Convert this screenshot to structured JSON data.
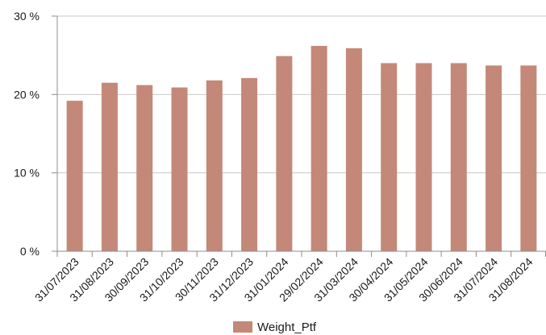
{
  "chart_data": {
    "type": "bar",
    "categories": [
      "31/07/2023",
      "31/08/2023",
      "30/09/2023",
      "31/10/2023",
      "30/11/2023",
      "31/12/2023",
      "31/01/2024",
      "29/02/2024",
      "31/03/2024",
      "30/04/2024",
      "31/05/2024",
      "30/06/2024",
      "31/07/2024",
      "31/08/2024"
    ],
    "series": [
      {
        "name": "Weight_Ptf",
        "values": [
          19.2,
          21.5,
          21.2,
          20.9,
          21.8,
          22.1,
          24.9,
          26.2,
          25.9,
          24.0,
          24.0,
          24.0,
          23.7,
          23.7
        ]
      }
    ],
    "ylim": [
      0,
      30
    ],
    "yticks": [
      0,
      10,
      20,
      30
    ],
    "ytick_labels": [
      "0 %",
      "10 %",
      "20 %",
      "30 %"
    ],
    "grid": "horizontal",
    "legend": "bottom",
    "colors": {
      "bar": "#c48878",
      "grid": "#c8c8c8",
      "axis": "#8c8c8c"
    }
  }
}
